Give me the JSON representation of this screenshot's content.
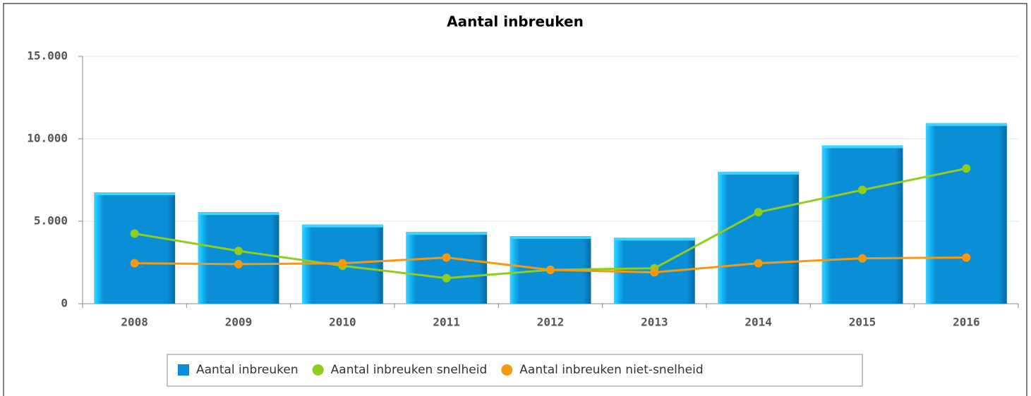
{
  "chart_data": {
    "type": "bar",
    "title": "Aantal inbreuken",
    "categories": [
      "2008",
      "2009",
      "2010",
      "2011",
      "2012",
      "2013",
      "2014",
      "2015",
      "2016"
    ],
    "series": [
      {
        "name": "Aantal inbreuken",
        "type": "bar",
        "color": "#0a8fd6",
        "values": [
          6750,
          5550,
          4800,
          4350,
          4100,
          4000,
          8000,
          9600,
          10950
        ]
      },
      {
        "name": "Aantal inbreuken snelheid",
        "type": "line",
        "color": "#8fce1e",
        "values": [
          4250,
          3200,
          2300,
          1550,
          2050,
          2150,
          5550,
          6900,
          8200
        ]
      },
      {
        "name": "Aantal inbreuken niet-snelheid",
        "type": "line",
        "color": "#f59a10",
        "values": [
          2450,
          2400,
          2450,
          2800,
          2050,
          1900,
          2450,
          2750,
          2800
        ]
      }
    ],
    "ylim": [
      0,
      15000
    ],
    "yticks": [
      0,
      {
        "value": 5000,
        "label": "5.000"
      },
      {
        "value": 10000,
        "label": "10.000"
      },
      {
        "value": 15000,
        "label": "15.000"
      }
    ],
    "grid": true,
    "legend": "bottom"
  }
}
